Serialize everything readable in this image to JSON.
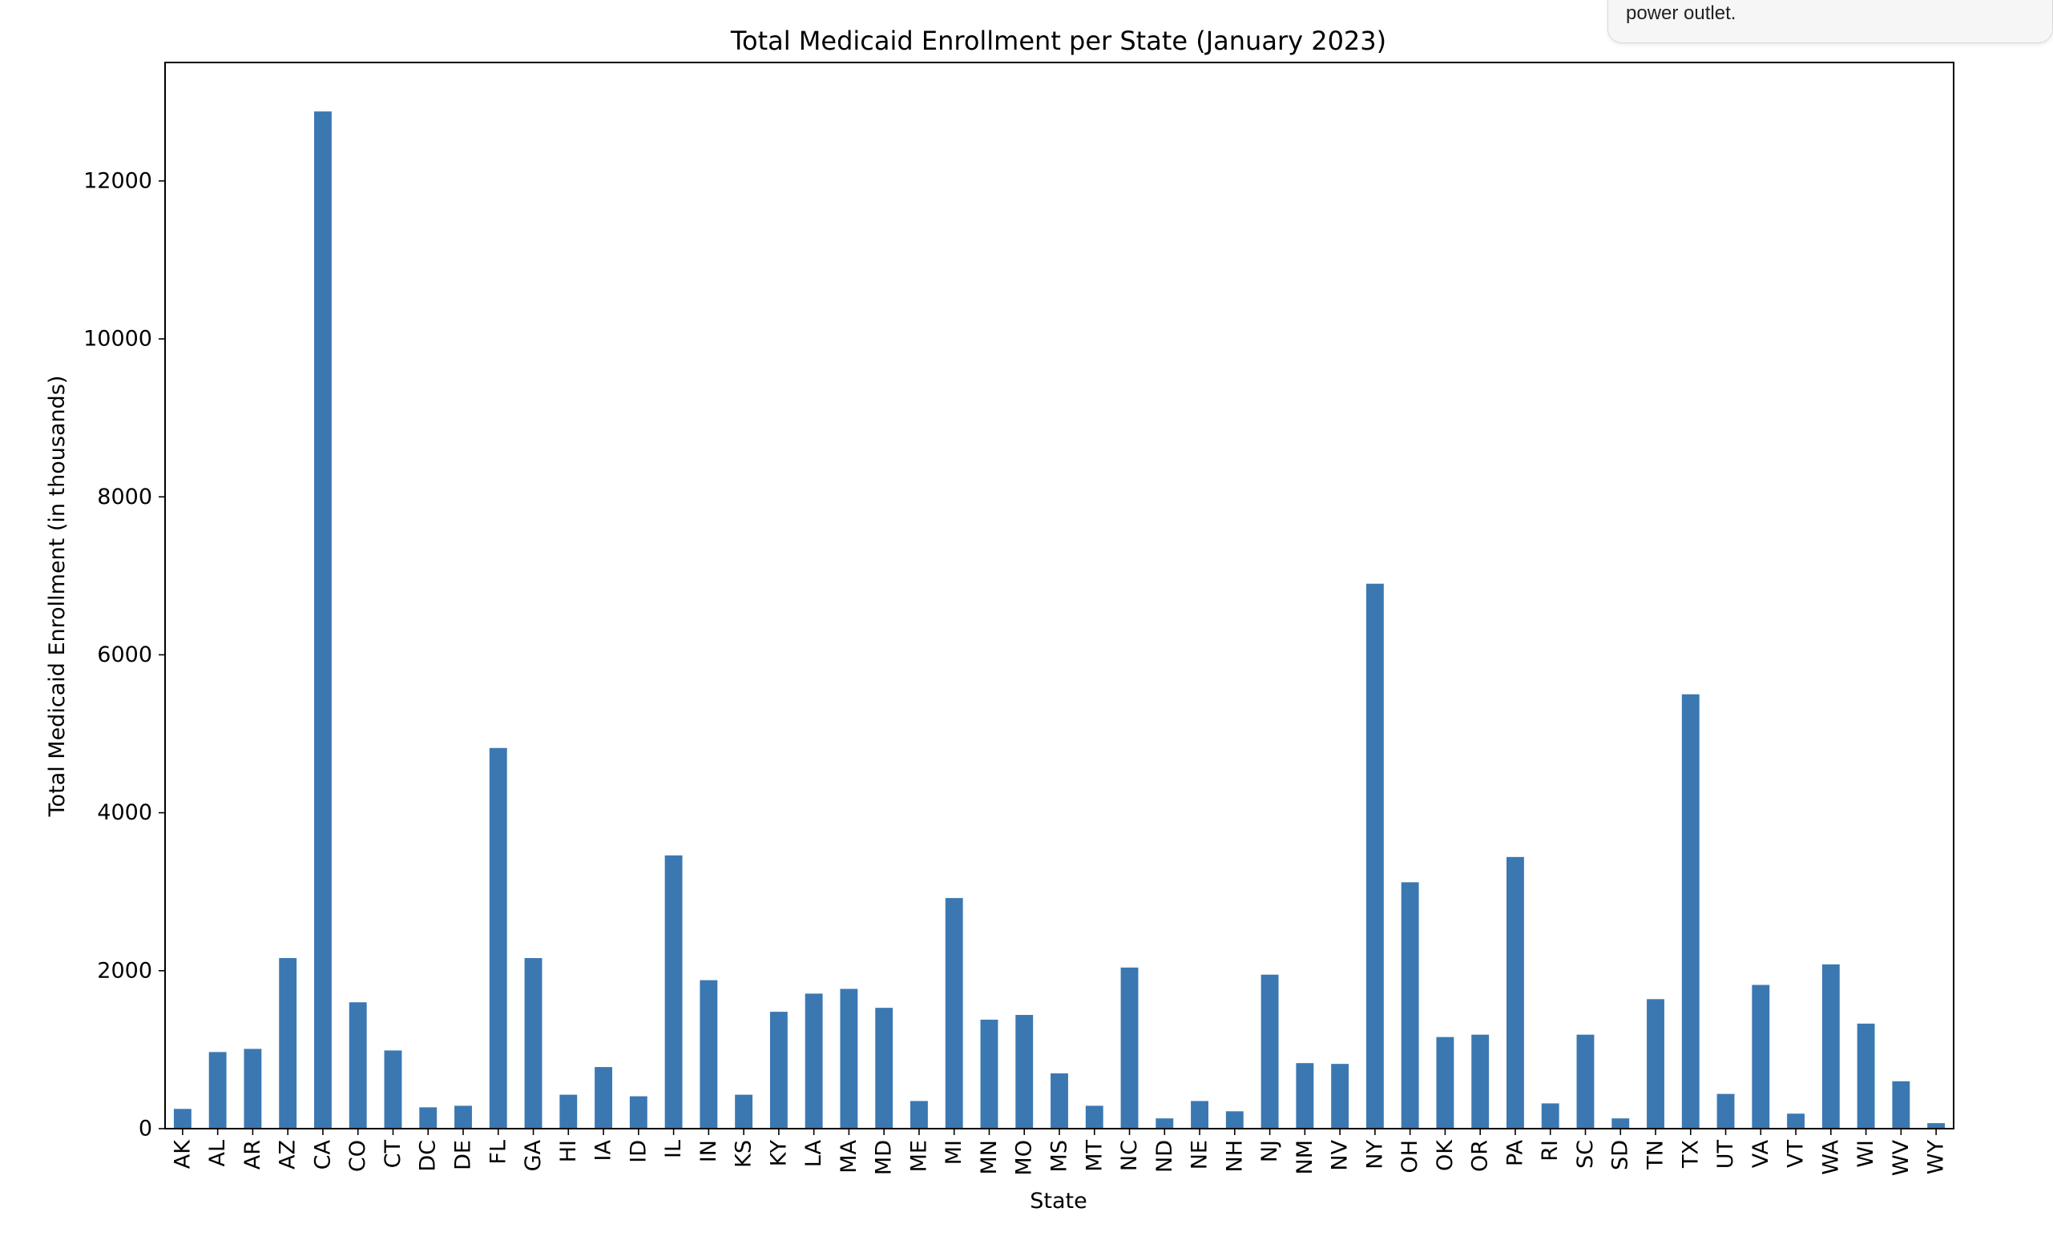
{
  "notification": {
    "text": "power outlet."
  },
  "colors": {
    "bar": "#3b78b2",
    "axis": "#000000",
    "background": "#ffffff"
  },
  "chart_data": {
    "type": "bar",
    "title": "Total Medicaid Enrollment per State (January 2023)",
    "xlabel": "State",
    "ylabel": "Total Medicaid Enrollment (in thousands)",
    "ylim": [
      0,
      13500
    ],
    "yticks": [
      0,
      2000,
      4000,
      6000,
      8000,
      10000,
      12000
    ],
    "yticklabels": [
      "0",
      "2000",
      "4000",
      "6000",
      "8000",
      "10000",
      "12000"
    ],
    "grid": false,
    "legend": "none",
    "categories": [
      "AK",
      "AL",
      "AR",
      "AZ",
      "CA",
      "CO",
      "CT",
      "DC",
      "DE",
      "FL",
      "GA",
      "HI",
      "IA",
      "ID",
      "IL",
      "IN",
      "KS",
      "KY",
      "LA",
      "MA",
      "MD",
      "ME",
      "MI",
      "MN",
      "MO",
      "MS",
      "MT",
      "NC",
      "ND",
      "NE",
      "NH",
      "NJ",
      "NM",
      "NV",
      "NY",
      "OH",
      "OK",
      "OR",
      "PA",
      "RI",
      "SC",
      "SD",
      "TN",
      "TX",
      "UT",
      "VA",
      "VT",
      "WA",
      "WI",
      "WV",
      "WY"
    ],
    "series": [
      {
        "values": [
          250,
          970,
          1010,
          2160,
          12880,
          1600,
          990,
          270,
          290,
          4820,
          2160,
          430,
          780,
          410,
          3460,
          1880,
          430,
          1480,
          1710,
          1770,
          1530,
          350,
          2920,
          1380,
          1440,
          700,
          290,
          2040,
          130,
          350,
          220,
          1950,
          830,
          820,
          6900,
          3120,
          1160,
          1190,
          3440,
          320,
          1190,
          130,
          1640,
          5500,
          440,
          1820,
          190,
          2080,
          1330,
          600,
          70
        ]
      }
    ]
  }
}
